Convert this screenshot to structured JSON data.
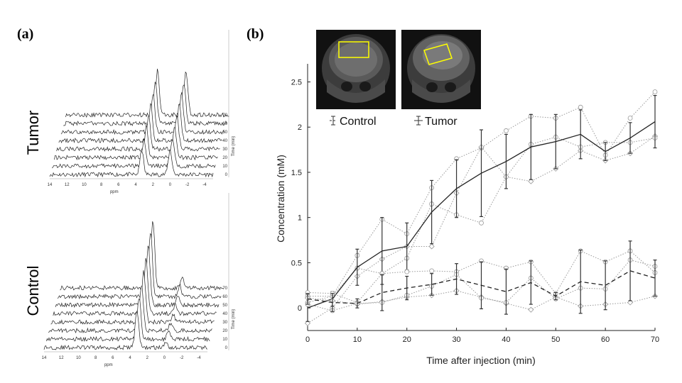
{
  "panel_a": {
    "label": "(a)",
    "tumor_label": "Tumor",
    "control_label": "Control",
    "ppm_ticks": [
      "14",
      "12",
      "10",
      "8",
      "6",
      "4",
      "2",
      "0",
      "-2",
      "-4"
    ],
    "ppm_label": "ppm",
    "time_ticks": [
      "0",
      "10",
      "20",
      "30",
      "40",
      "50",
      "60",
      "70"
    ],
    "time_label": "Time (min)"
  },
  "panel_b": {
    "label": "(b)",
    "legend_control": "Control",
    "legend_tumor": "Tumor"
  },
  "colors": {
    "roi_box": "#ffff00",
    "line": "#333333",
    "dotted": "#999999"
  },
  "chart_data": {
    "type": "line",
    "xlabel": "Time after injection (min)",
    "ylabel": "Concentration (mM)",
    "xlim": [
      0,
      70
    ],
    "ylim": [
      -0.25,
      2.7
    ],
    "xticks": [
      0,
      10,
      20,
      30,
      40,
      50,
      60,
      70
    ],
    "yticks": [
      0,
      0.5,
      1,
      1.5,
      2,
      2.5
    ],
    "ytick_labels": [
      "0",
      "0.5",
      "1",
      "1.5",
      "2",
      "2.5"
    ],
    "x": [
      0,
      5,
      10,
      15,
      20,
      25,
      30,
      35,
      40,
      45,
      50,
      55,
      60,
      65,
      70
    ],
    "series": [
      {
        "name": "Tumor",
        "style": "solid",
        "values": [
          0.0,
          0.1,
          0.45,
          0.63,
          0.68,
          1.06,
          1.32,
          1.49,
          1.62,
          1.78,
          1.84,
          1.92,
          1.73,
          1.88,
          2.06
        ],
        "err": [
          0.15,
          0.08,
          0.2,
          0.37,
          0.26,
          0.35,
          0.32,
          0.48,
          0.3,
          0.36,
          0.3,
          0.27,
          0.1,
          0.17,
          0.29
        ],
        "individual": [
          [
            0.13,
            0.13,
            0.58,
            0.98,
            0.82,
            1.33,
            1.65,
            1.77,
            1.96,
            2.12,
            2.1,
            2.22,
            1.69,
            2.1,
            2.39
          ],
          [
            -0.17,
            0.0,
            0.35,
            0.54,
            0.68,
            0.68,
            1.27,
            1.78,
            1.45,
            1.4,
            1.54,
            1.74,
            1.63,
            1.71,
            1.9
          ],
          [
            0.06,
            0.13,
            0.44,
            0.38,
            0.55,
            1.15,
            1.03,
            0.94,
            1.45,
            1.81,
            1.89,
            1.78,
            1.83,
            1.83,
            1.88
          ]
        ]
      },
      {
        "name": "Control",
        "style": "dashed",
        "values": [
          0.1,
          0.06,
          0.05,
          0.17,
          0.22,
          0.26,
          0.32,
          0.25,
          0.18,
          0.28,
          0.13,
          0.29,
          0.25,
          0.41,
          0.33
        ],
        "err": [
          0.06,
          0.1,
          0.05,
          0.2,
          0.13,
          0.12,
          0.17,
          0.26,
          0.25,
          0.24,
          0.04,
          0.35,
          0.27,
          0.33,
          0.2
        ],
        "individual": [
          [
            0.17,
            0.16,
            0.06,
            0.38,
            0.4,
            0.41,
            0.4,
            0.52,
            0.44,
            0.51,
            0.16,
            0.63,
            0.51,
            0.63,
            0.39
          ],
          [
            0.11,
            0.08,
            0.04,
            0.07,
            0.12,
            0.14,
            0.19,
            0.12,
            0.05,
            -0.02,
            0.12,
            0.02,
            0.04,
            0.06,
            0.13
          ],
          [
            0.04,
            -0.03,
            0.05,
            0.06,
            0.14,
            0.24,
            0.37,
            0.11,
            0.06,
            0.33,
            0.1,
            0.22,
            0.21,
            0.53,
            0.46
          ]
        ]
      }
    ]
  }
}
